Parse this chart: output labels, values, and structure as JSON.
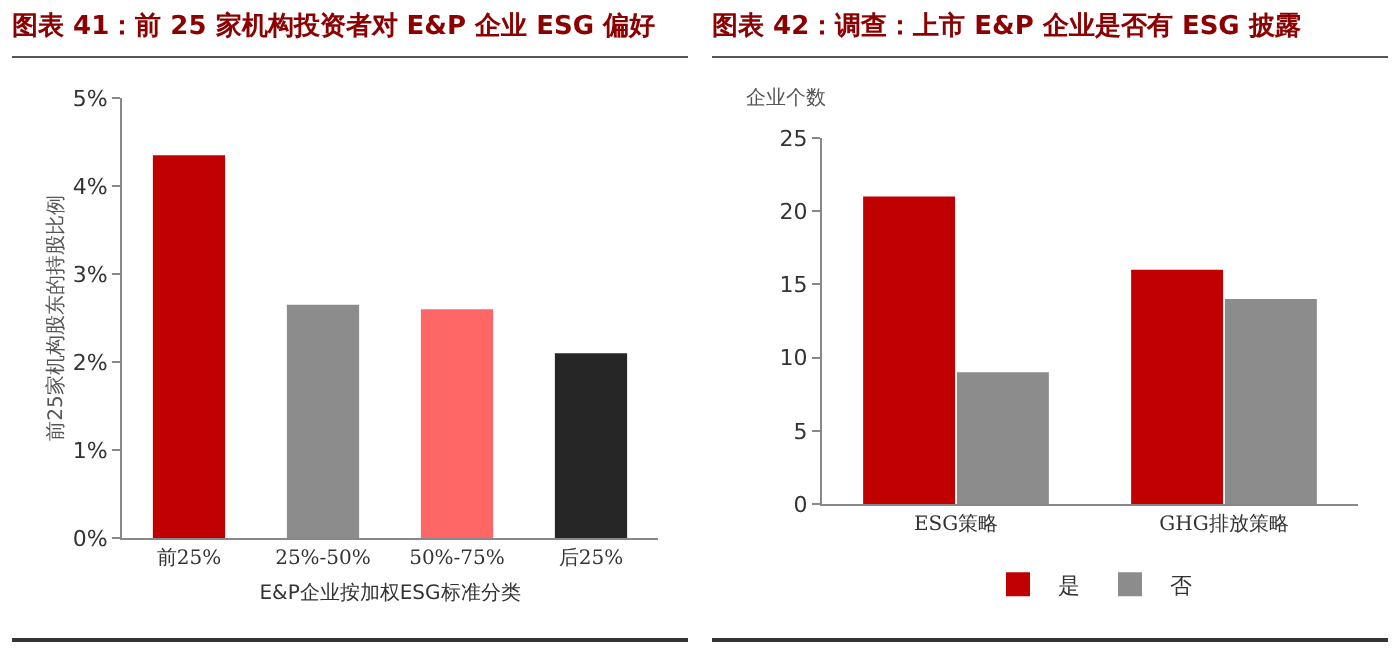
{
  "chart_data": [
    {
      "type": "bar",
      "title": "图表 41：前 25 家机构投资者对 E&P 企业 ESG 偏好",
      "xlabel": "E&P企业按加权ESG标准分类",
      "ylabel": "前25家机构股东的持股比例",
      "categories": [
        "前25%",
        "25%-50%",
        "50%-75%",
        "后25%"
      ],
      "values": [
        4.35,
        2.65,
        2.6,
        2.1
      ],
      "colors": [
        "#c00000",
        "#8c8c8c",
        "#ff6666",
        "#262626"
      ],
      "ylim": [
        0,
        5
      ],
      "yticks": [
        {
          "value": 0,
          "label": "0%"
        },
        {
          "value": 1,
          "label": "1%"
        },
        {
          "value": 2,
          "label": "2%"
        },
        {
          "value": 3,
          "label": "3%"
        },
        {
          "value": 4,
          "label": "4%"
        },
        {
          "value": 5,
          "label": "5%"
        }
      ],
      "grid": false,
      "legend": false
    },
    {
      "type": "bar",
      "title": "图表 42：调查：上市 E&P 企业是否有 ESG 披露",
      "ylabel": "企业个数",
      "categories": [
        "ESG策略",
        "GHG排放策略"
      ],
      "series": [
        {
          "name": "是",
          "color": "#c00000",
          "values": [
            21,
            16
          ]
        },
        {
          "name": "否",
          "color": "#8c8c8c",
          "values": [
            9,
            14
          ]
        }
      ],
      "ylim": [
        0,
        25
      ],
      "yticks": [
        0,
        5,
        10,
        15,
        20,
        25
      ],
      "grid": false,
      "legend": "bottom"
    }
  ]
}
